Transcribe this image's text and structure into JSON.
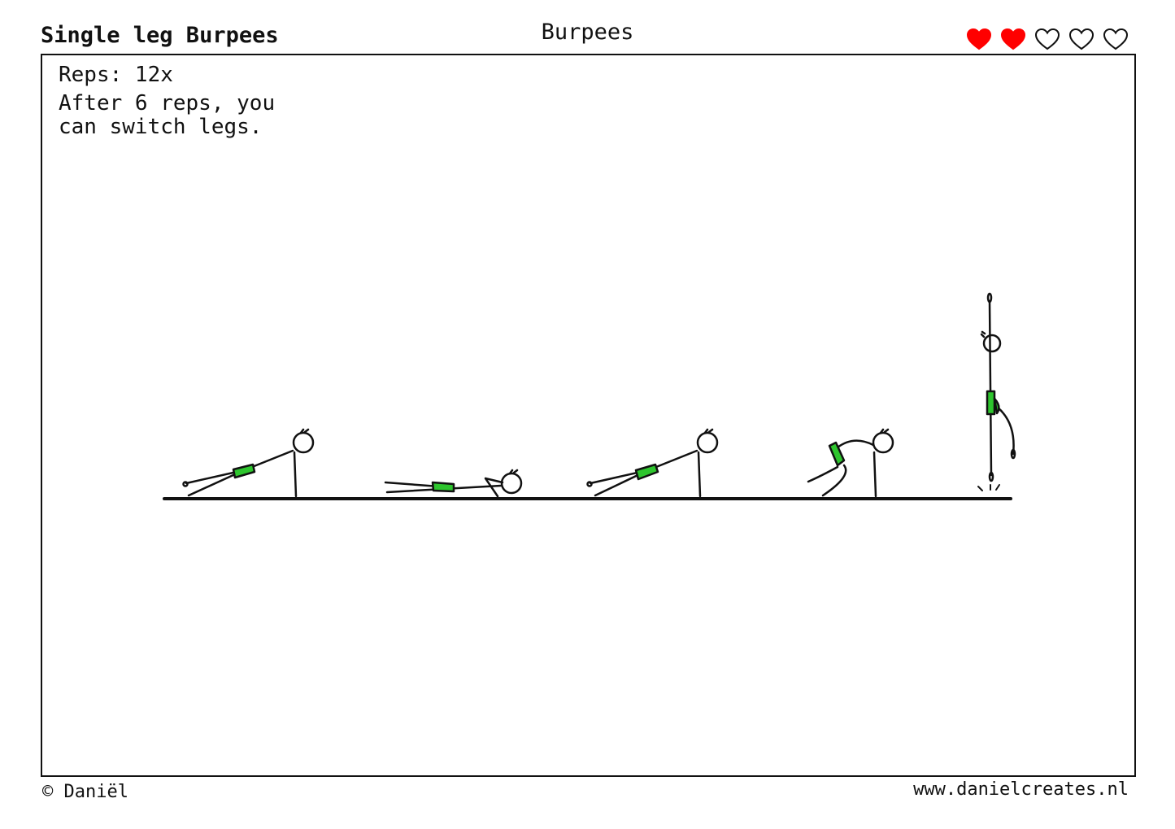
{
  "header": {
    "title": "Single leg Burpees",
    "category": "Burpees",
    "difficulty": {
      "value": 2,
      "max": 5,
      "filled_color": "#ff0000",
      "icon": "heart-icon"
    }
  },
  "card": {
    "reps": "Reps: 12x",
    "instructions": [
      "After 6 reps, you",
      "can switch legs."
    ],
    "illustration": {
      "steps": [
        "plank-leg-raised",
        "push-up-down-leg-raised",
        "plank-leg-raised",
        "jump-feet-to-hands",
        "jump-up"
      ],
      "accent_color": "#2ec52e"
    }
  },
  "footer": {
    "copyright": "© Daniël",
    "website": "www.danielcreates.nl"
  }
}
